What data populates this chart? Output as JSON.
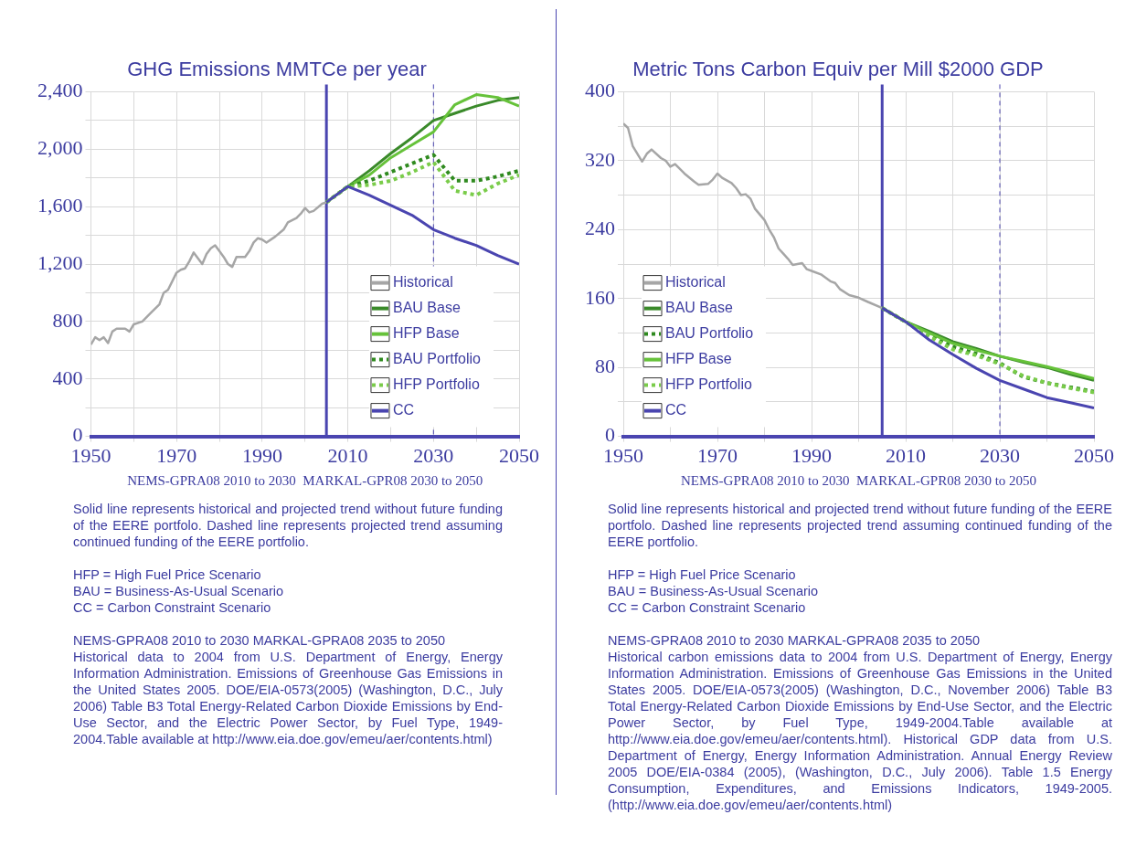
{
  "chart_data": [
    {
      "type": "line",
      "title": "GHG Emissions MMTCe per year",
      "xlabel": "NEMS-GPRA08 2010 to 2030  MARKAL-GPR08 2030 to 2050",
      "xlim": [
        1950,
        2050
      ],
      "xticks": [
        1950,
        {
          "value": 1960,
          "label": null
        },
        1970,
        {
          "value": 1980,
          "label": null
        },
        1990,
        {
          "value": 2000,
          "label": null
        },
        2010,
        {
          "value": 2020,
          "label": null
        },
        2030,
        {
          "value": 2040,
          "label": null
        },
        2050
      ],
      "ylim": [
        0,
        2400
      ],
      "yticks": [
        0,
        {
          "value": 200,
          "label": null
        },
        400,
        {
          "value": 600,
          "label": null
        },
        800,
        {
          "value": 1000,
          "label": null
        },
        {
          "value": 1200,
          "label": "1,200"
        },
        {
          "value": 1400,
          "label": null
        },
        {
          "value": 1600,
          "label": "1,600"
        },
        {
          "value": 1800,
          "label": null
        },
        {
          "value": 2000,
          "label": "2,000"
        },
        {
          "value": 2200,
          "label": null
        },
        {
          "value": 2400,
          "label": "2,400"
        }
      ],
      "grid": true,
      "legend": "bottom right",
      "ref_lines": [
        {
          "axis": "x",
          "value": 2005,
          "color": "#4a45b0"
        },
        {
          "axis": "x",
          "value": 2030,
          "color": "#4a45b0",
          "line_style": "dashed"
        }
      ],
      "series": [
        {
          "name": "Historical",
          "color": "#a6a6a6",
          "x": [
            1950,
            1951,
            1952,
            1953,
            1954,
            1955,
            1956,
            1958,
            1959,
            1960,
            1962,
            1964,
            1966,
            1967,
            1968,
            1970,
            1971,
            1972,
            1973,
            1974,
            1975,
            1976,
            1977,
            1978,
            1979,
            1980,
            1981,
            1982,
            1983,
            1984,
            1986,
            1987,
            1988,
            1989,
            1990,
            1991,
            1993,
            1995,
            1996,
            1998,
            1999,
            2000,
            2001,
            2002,
            2004,
            2005
          ],
          "values": [
            640,
            690,
            670,
            690,
            650,
            730,
            750,
            750,
            730,
            780,
            800,
            860,
            920,
            1000,
            1020,
            1140,
            1160,
            1170,
            1220,
            1280,
            1240,
            1200,
            1270,
            1310,
            1330,
            1290,
            1250,
            1200,
            1180,
            1250,
            1250,
            1290,
            1350,
            1380,
            1370,
            1350,
            1390,
            1440,
            1490,
            1520,
            1550,
            1590,
            1560,
            1570,
            1620,
            1630
          ]
        },
        {
          "name": "BAU Base",
          "color": "#3a8a2a",
          "x": [
            2005,
            2010,
            2015,
            2020,
            2025,
            2030,
            2035,
            2040,
            2045,
            2050
          ],
          "values": [
            1630,
            1740,
            1850,
            1970,
            2080,
            2200,
            2250,
            2300,
            2340,
            2360
          ]
        },
        {
          "name": "HFP Base",
          "color": "#66c23a",
          "x": [
            2005,
            2010,
            2015,
            2020,
            2025,
            2030,
            2035,
            2040,
            2045,
            2050
          ],
          "values": [
            1630,
            1740,
            1820,
            1940,
            2030,
            2120,
            2310,
            2380,
            2360,
            2300
          ]
        },
        {
          "name": "BAU Portfolio",
          "color": "#2f8a1f",
          "line_style": "dotted",
          "x": [
            2005,
            2010,
            2015,
            2020,
            2025,
            2030,
            2035,
            2040,
            2045,
            2050
          ],
          "values": [
            1630,
            1740,
            1780,
            1840,
            1900,
            1960,
            1780,
            1780,
            1810,
            1850
          ]
        },
        {
          "name": "HFP Portfolio",
          "color": "#7acc4a",
          "line_style": "dotted",
          "x": [
            2005,
            2010,
            2015,
            2020,
            2025,
            2030,
            2035,
            2040,
            2045,
            2050
          ],
          "values": [
            1630,
            1740,
            1750,
            1780,
            1840,
            1910,
            1710,
            1680,
            1760,
            1820
          ]
        },
        {
          "name": "CC",
          "color": "#4a45b0",
          "x": [
            2005,
            2010,
            2015,
            2020,
            2025,
            2030,
            2035,
            2040,
            2045,
            2050
          ],
          "values": [
            1630,
            1740,
            1680,
            1610,
            1540,
            1440,
            1380,
            1330,
            1260,
            1200
          ]
        }
      ],
      "annotations": [
        "Solid line represents historical and projected trend without future funding of the EERE portfolo. Dashed line represents projected trend assuming continued funding of the EERE portfolio.",
        "HFP = High Fuel Price Scenario\nBAU = Business-As-Usual Scenario\nCC = Carbon Constraint Scenario",
        "NEMS-GPRA08 2010 to 2030 MARKAL-GPRA08 2035 to 2050\nHistorical data to 2004 from U.S. Department of Energy, Energy Information Administration. Emissions of Greenhouse Gas Emissions in the United States 2005. DOE/EIA-0573(2005) (Washington, D.C., July 2006) Table B3 Total Energy-Related Carbon Dioxide Emissions by End-Use Sector, and the Electric Power Sector, by Fuel Type, 1949-2004.Table available at http://www.eia.doe.gov/emeu/aer/contents.html)"
      ]
    },
    {
      "type": "line",
      "title": "Metric Tons Carbon Equiv per Mill $2000 GDP",
      "xlabel": "NEMS-GPRA08 2010 to 2030  MARKAL-GPR08 2030 to 2050",
      "xlim": [
        1950,
        2050
      ],
      "xticks": [
        1950,
        {
          "value": 1960,
          "label": null
        },
        1970,
        {
          "value": 1980,
          "label": null
        },
        1990,
        {
          "value": 2000,
          "label": null
        },
        2010,
        {
          "value": 2020,
          "label": null
        },
        2030,
        {
          "value": 2040,
          "label": null
        },
        2050
      ],
      "ylim": [
        0,
        400
      ],
      "yticks": [
        0,
        {
          "value": 40,
          "label": null
        },
        80,
        {
          "value": 120,
          "label": null
        },
        160,
        {
          "value": 200,
          "label": null
        },
        240,
        {
          "value": 280,
          "label": null
        },
        320,
        {
          "value": 360,
          "label": null
        },
        400
      ],
      "grid": true,
      "legend": "bottom left",
      "ref_lines": [
        {
          "axis": "x",
          "value": 2005,
          "color": "#4a45b0"
        },
        {
          "axis": "x",
          "value": 2030,
          "color": "#4a45b0",
          "line_style": "dashed"
        }
      ],
      "series": [
        {
          "name": "Historical",
          "color": "#a6a6a6",
          "x": [
            1950,
            1951,
            1952,
            1954,
            1955,
            1956,
            1958,
            1959,
            1960,
            1961,
            1963,
            1965,
            1966,
            1968,
            1969,
            1970,
            1971,
            1973,
            1974,
            1975,
            1976,
            1977,
            1978,
            1980,
            1981,
            1982,
            1983,
            1984,
            1985,
            1986,
            1988,
            1989,
            1990,
            1992,
            1993,
            1994,
            1995,
            1996,
            1998,
            2000,
            2002,
            2005
          ],
          "values": [
            363,
            358,
            337,
            319,
            328,
            333,
            323,
            320,
            313,
            316,
            305,
            296,
            292,
            293,
            298,
            305,
            300,
            294,
            288,
            280,
            281,
            276,
            264,
            251,
            240,
            231,
            218,
            212,
            206,
            199,
            201,
            194,
            192,
            188,
            184,
            180,
            178,
            171,
            164,
            161,
            156,
            149
          ]
        },
        {
          "name": "BAU Base",
          "color": "#3a8a2a",
          "x": [
            2005,
            2010,
            2015,
            2020,
            2025,
            2030,
            2035,
            2040,
            2045,
            2050
          ],
          "values": [
            149,
            133,
            122,
            110,
            102,
            93,
            86,
            80,
            72,
            65
          ]
        },
        {
          "name": "BAU Portfolio",
          "color": "#2f8a1f",
          "line_style": "dotted",
          "x": [
            2005,
            2010,
            2015,
            2020,
            2025,
            2030,
            2035,
            2040,
            2045,
            2050
          ],
          "values": [
            149,
            133,
            118,
            104,
            96,
            85,
            69,
            62,
            57,
            52
          ]
        },
        {
          "name": "HFP Base",
          "color": "#66c23a",
          "x": [
            2005,
            2010,
            2015,
            2020,
            2025,
            2030,
            2035,
            2040,
            2045,
            2050
          ],
          "values": [
            149,
            133,
            120,
            108,
            100,
            93,
            87,
            81,
            74,
            67
          ]
        },
        {
          "name": "HFP Portfolio",
          "color": "#7acc4a",
          "line_style": "dotted",
          "x": [
            2005,
            2010,
            2015,
            2020,
            2025,
            2030,
            2035,
            2040,
            2045,
            2050
          ],
          "values": [
            149,
            133,
            116,
            101,
            94,
            84,
            70,
            62,
            56,
            51
          ]
        },
        {
          "name": "CC",
          "color": "#4a45b0",
          "x": [
            2005,
            2010,
            2015,
            2020,
            2025,
            2030,
            2035,
            2040,
            2045,
            2050
          ],
          "values": [
            149,
            133,
            112,
            95,
            79,
            65,
            55,
            45,
            39,
            33
          ]
        }
      ],
      "annotations": [
        "Solid line represents historical and projected trend without future funding of the EERE portfolo. Dashed line represents projected trend assuming continued funding of the EERE portfolio.",
        "HFP = High Fuel Price Scenario\nBAU = Business-As-Usual Scenario\nCC = Carbon Constraint Scenario",
        "NEMS-GPRA08 2010 to 2030 MARKAL-GPRA08 2035 to 2050\nHistorical  carbon emissions data to 2004 from U.S. Department of Energy, Energy Information Administration. Emissions of Greenhouse Gas Emissions in the United States 2005. DOE/EIA-0573(2005) (Washington, D.C., November 2006) Table B3 Total Energy-Related Carbon Dioxide Emissions by End-Use Sector, and the Electric Power Sector, by Fuel Type, 1949-2004.Table available at http://www.eia.doe.gov/emeu/aer/contents.html). Historical GDP data from U.S. Department of Energy, Energy Information Administration. Annual Energy Review 2005 DOE/EIA-0384 (2005),  (Washington, D.C., July 2006). Table 1.5 Energy Consumption, Expenditures, and Emissions Indicators, 1949-2005. (http://www.eia.doe.gov/emeu/aer/contents.html)"
      ]
    }
  ]
}
